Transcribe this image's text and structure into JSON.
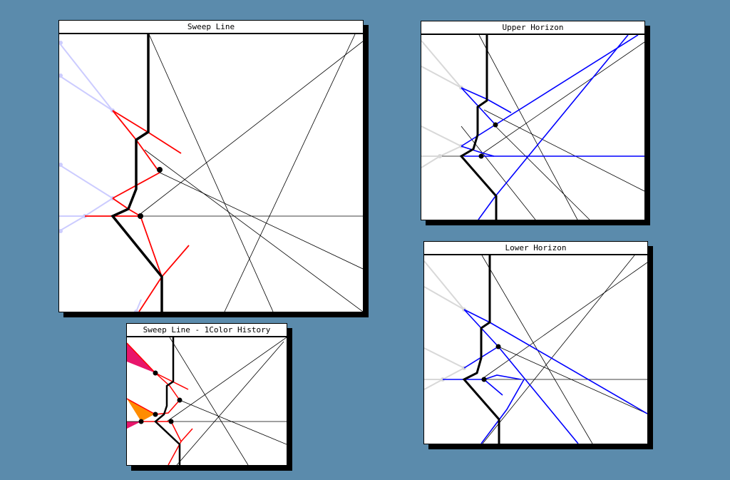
{
  "windows": {
    "sweep_line": {
      "title": "Sweep Line"
    },
    "upper_horizon": {
      "title": "Upper Horizon"
    },
    "lower_horizon": {
      "title": "Lower Horizon"
    },
    "history": {
      "title": "Sweep Line - 1Color History"
    }
  },
  "colors": {
    "background": "#5b8bac",
    "sweep_front": "#000000",
    "wavefront": "#ff0000",
    "horizon": "#0000ff",
    "past_segments_sweep": "#ccccff",
    "past_segments_horizon": "#d8d8d8",
    "history_fill_1": "#e8166b",
    "history_fill_2": "#ff8c00"
  }
}
